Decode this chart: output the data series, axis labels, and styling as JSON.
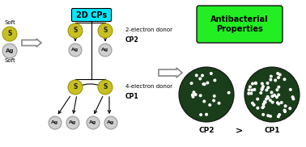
{
  "bg_color": "#ffffff",
  "s_ball_color": "#c8c020",
  "s_ball_edge": "#909000",
  "ag_ball_color": "#d0d0d0",
  "ag_ball_edge": "#909090",
  "s_label": "S",
  "ag_label": "Ag",
  "title_2dcp": "2D CPs",
  "title_2dcp_bg": "#00e8ff",
  "cp2_label": "CP2",
  "cp1_label": "CP1",
  "donor2_label": "2-electron donor",
  "donor4_label": "4-electron donor",
  "soft_label": "Soft",
  "antibac_label": "Antibacterial\nProperties",
  "antibac_bg": "#22ee22",
  "plate_color": "#1a3d1a",
  "plate_edge": "#111111",
  "cp2_text": "CP2",
  "cp1_text": "CP1",
  "gt_text": ">",
  "cp2_n_dots": 22,
  "cp1_n_dots": 60
}
